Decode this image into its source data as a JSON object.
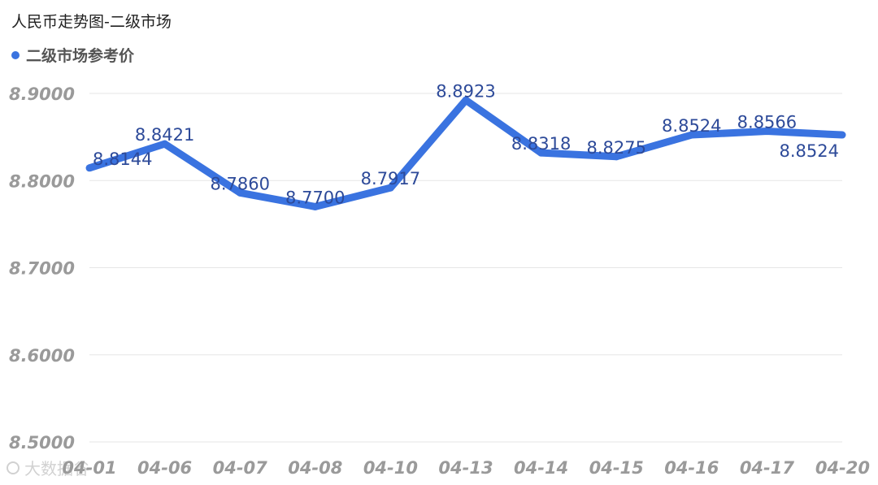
{
  "title": "人民币走势图-二级市场",
  "watermark": "大数据谷",
  "colors": {
    "line": "#3a73e0",
    "grid": "#e6e6e6",
    "tick": "#9a9a9a",
    "value_label": "#2d4a99"
  },
  "chart_data": {
    "type": "line",
    "title": "人民币走势图-二级市场",
    "xlabel": "",
    "ylabel": "",
    "ylim": [
      8.5,
      8.9
    ],
    "yticks": [
      "8.9000",
      "8.8000",
      "8.7000",
      "8.6000",
      "8.5000"
    ],
    "grid": true,
    "legend_position": "top-left",
    "categories": [
      "04-01",
      "04-06",
      "04-07",
      "04-08",
      "04-10",
      "04-13",
      "04-14",
      "04-15",
      "04-16",
      "04-17",
      "04-20"
    ],
    "series": [
      {
        "name": "二级市场参考价",
        "values": [
          8.8144,
          8.8421,
          8.786,
          8.77,
          8.7917,
          8.8923,
          8.8318,
          8.8275,
          8.8524,
          8.8566,
          8.8524
        ],
        "labels": [
          "8.8144",
          "8.8421",
          "8.7860",
          "8.7700",
          "8.7917",
          "8.8923",
          "8.8318",
          "8.8275",
          "8.8524",
          "8.8566",
          "8.8524"
        ]
      }
    ]
  }
}
